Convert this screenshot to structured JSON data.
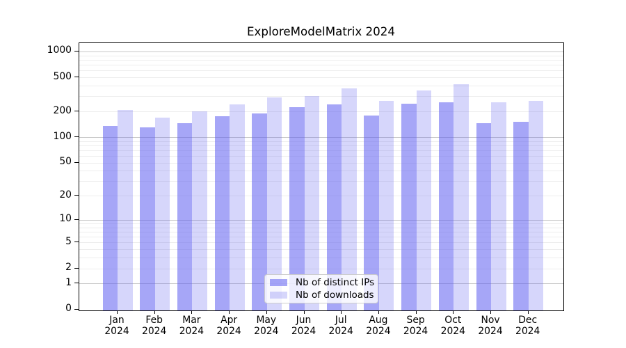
{
  "figure": {
    "title": "ExploreModelMatrix 2024"
  },
  "chart_data": {
    "type": "bar",
    "title": "ExploreModelMatrix 2024",
    "categories": [
      "Jan 2024",
      "Feb 2024",
      "Mar 2024",
      "Apr 2024",
      "May 2024",
      "Jun 2024",
      "Jul 2024",
      "Aug 2024",
      "Sep 2024",
      "Oct 2024",
      "Nov 2024",
      "Dec 2024"
    ],
    "series": [
      {
        "name": "Nb of distinct IPs",
        "color": "rgba(97,97,240,0.56)",
        "values": [
          135,
          130,
          145,
          175,
          190,
          225,
          240,
          180,
          245,
          255,
          145,
          150
        ]
      },
      {
        "name": "Nb of downloads",
        "color": "rgba(97,97,240,0.26)",
        "values": [
          210,
          170,
          200,
          240,
          290,
          305,
          375,
          265,
          350,
          415,
          255,
          265
        ]
      }
    ],
    "xlabel": "",
    "ylabel": "",
    "yscale": "log(value+1)",
    "yticks": [
      1000,
      500,
      200,
      100,
      50,
      20,
      10,
      5,
      2,
      1,
      0
    ],
    "ylim": [
      0,
      1300
    ],
    "grid": true,
    "legend_position": "lower center"
  },
  "colors": {
    "bar_dark_rendered": "#a7a7f4",
    "bar_light_rendered": "#d8d8f9",
    "grid_major": "#c9c9c9",
    "grid_minor": "#ededed",
    "spine": "#000000",
    "background": "#ffffff"
  }
}
